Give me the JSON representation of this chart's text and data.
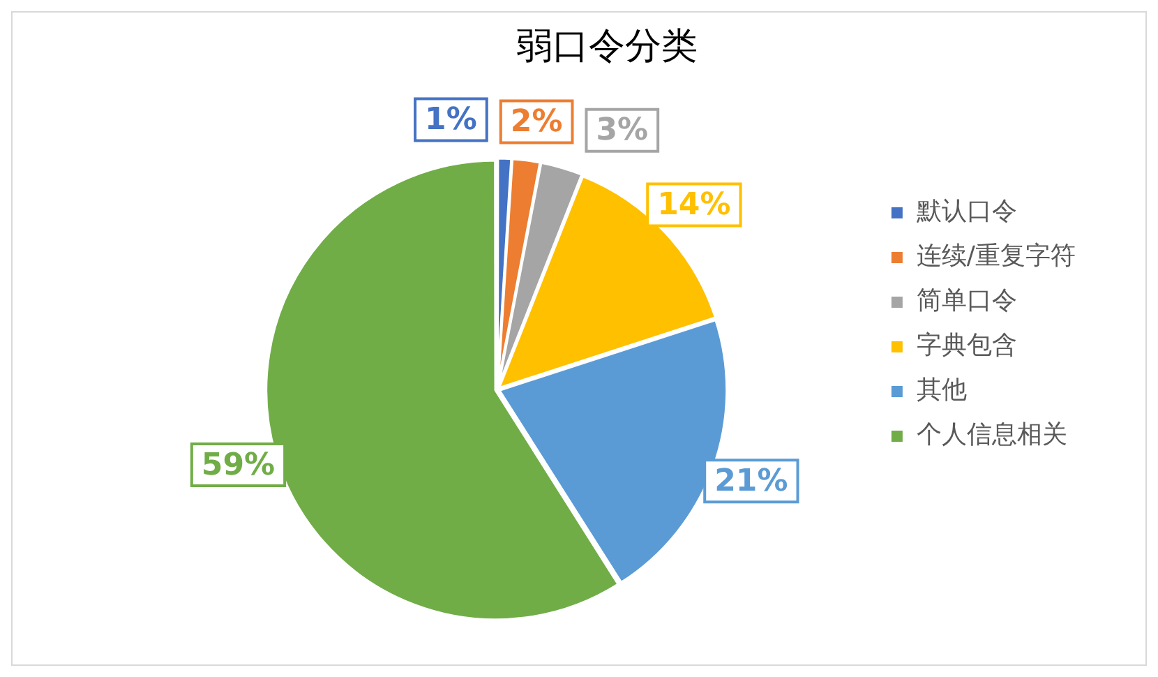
{
  "chart_data": {
    "type": "pie",
    "title": "弱口令分类",
    "categories": [
      "默认口令",
      "连续/重复字符",
      "简单口令",
      "字典包含",
      "其他",
      "个人信息相关"
    ],
    "values": [
      1,
      2,
      3,
      14,
      21,
      59
    ],
    "colors": [
      "#4472c4",
      "#ed7d31",
      "#a5a5a5",
      "#ffc000",
      "#5b9bd5",
      "#70ad47"
    ],
    "value_labels": [
      "1%",
      "2%",
      "3%",
      "14%",
      "21%",
      "59%"
    ],
    "legend": "right"
  }
}
